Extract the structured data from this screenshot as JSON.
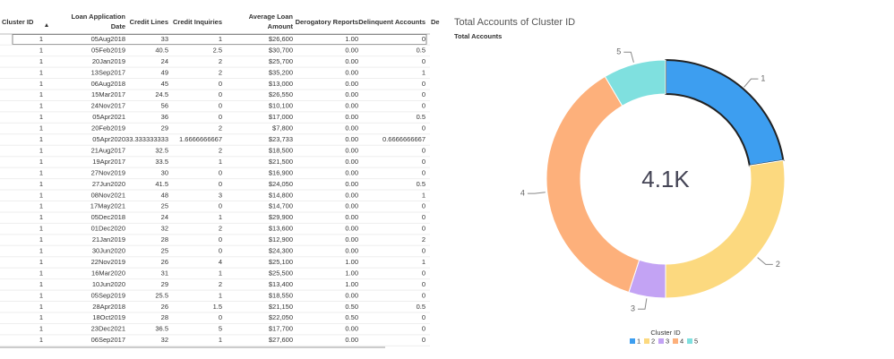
{
  "table": {
    "headers": [
      [
        "Cluster ID"
      ],
      [
        "Loan Application",
        "Date"
      ],
      [
        "Credit Lines"
      ],
      [
        "Credit Inquiries"
      ],
      [
        "Average Loan",
        "Amount"
      ],
      [
        "Derogatory Reports"
      ],
      [
        "Delinquent Accounts"
      ],
      [
        "De"
      ]
    ],
    "rows": [
      [
        "1",
        "05Aug2018",
        "33",
        "1",
        "$26,600",
        "1.00",
        "0"
      ],
      [
        "1",
        "05Feb2019",
        "40.5",
        "2.5",
        "$30,700",
        "0.00",
        "0.5"
      ],
      [
        "1",
        "20Jan2019",
        "24",
        "2",
        "$25,700",
        "0.00",
        "0"
      ],
      [
        "1",
        "13Sep2017",
        "49",
        "2",
        "$35,200",
        "0.00",
        "1"
      ],
      [
        "1",
        "06Aug2018",
        "45",
        "0",
        "$13,000",
        "0.00",
        "0"
      ],
      [
        "1",
        "15Mar2017",
        "24.5",
        "0",
        "$26,550",
        "0.00",
        "0"
      ],
      [
        "1",
        "24Nov2017",
        "56",
        "0",
        "$10,100",
        "0.00",
        "0"
      ],
      [
        "1",
        "05Apr2021",
        "36",
        "0",
        "$17,000",
        "0.00",
        "0.5"
      ],
      [
        "1",
        "20Feb2019",
        "29",
        "2",
        "$7,800",
        "0.00",
        "0"
      ],
      [
        "1",
        "05Apr2020",
        "33.333333333",
        "1.6666666667",
        "$23,733",
        "0.00",
        "0.6666666667"
      ],
      [
        "1",
        "21Aug2017",
        "32.5",
        "2",
        "$18,500",
        "0.00",
        "0"
      ],
      [
        "1",
        "19Apr2017",
        "33.5",
        "1",
        "$21,500",
        "0.00",
        "0"
      ],
      [
        "1",
        "27Nov2019",
        "30",
        "0",
        "$16,900",
        "0.00",
        "0"
      ],
      [
        "1",
        "27Jun2020",
        "41.5",
        "0",
        "$24,050",
        "0.00",
        "0.5"
      ],
      [
        "1",
        "08Nov2021",
        "48",
        "3",
        "$14,800",
        "0.00",
        "1"
      ],
      [
        "1",
        "17May2021",
        "25",
        "0",
        "$14,700",
        "0.00",
        "0"
      ],
      [
        "1",
        "05Dec2018",
        "24",
        "1",
        "$29,900",
        "0.00",
        "0"
      ],
      [
        "1",
        "01Dec2020",
        "32",
        "2",
        "$13,600",
        "0.00",
        "0"
      ],
      [
        "1",
        "21Jan2019",
        "28",
        "0",
        "$12,900",
        "0.00",
        "2"
      ],
      [
        "1",
        "30Jun2020",
        "25",
        "0",
        "$24,300",
        "0.00",
        "0"
      ],
      [
        "1",
        "22Nov2019",
        "26",
        "4",
        "$25,100",
        "1.00",
        "1"
      ],
      [
        "1",
        "16Mar2020",
        "31",
        "1",
        "$25,500",
        "1.00",
        "0"
      ],
      [
        "1",
        "10Jun2020",
        "29",
        "2",
        "$13,400",
        "1.00",
        "0"
      ],
      [
        "1",
        "05Sep2019",
        "25.5",
        "1",
        "$18,550",
        "0.00",
        "0"
      ],
      [
        "1",
        "28Apr2018",
        "26",
        "1.5",
        "$21,150",
        "0.50",
        "0.5"
      ],
      [
        "1",
        "18Oct2019",
        "28",
        "0",
        "$22,050",
        "0.50",
        "0"
      ],
      [
        "1",
        "23Dec2021",
        "36.5",
        "5",
        "$17,700",
        "0.00",
        "0"
      ],
      [
        "1",
        "06Sep2017",
        "32",
        "1",
        "$27,600",
        "0.00",
        "0"
      ]
    ]
  },
  "chart_data": {
    "type": "donut",
    "title": "Total Accounts of Cluster ID",
    "subtitle": "Total Accounts",
    "center_label": "4.1K",
    "legend_title": "Cluster ID",
    "categories": [
      "1",
      "2",
      "3",
      "4",
      "5"
    ],
    "values": [
      922,
      1128,
      205,
      1497,
      348
    ],
    "colors": [
      "#3d9ef0",
      "#fcd97f",
      "#c3a3f4",
      "#fdb07b",
      "#7fe0df"
    ],
    "highlighted": 0
  }
}
